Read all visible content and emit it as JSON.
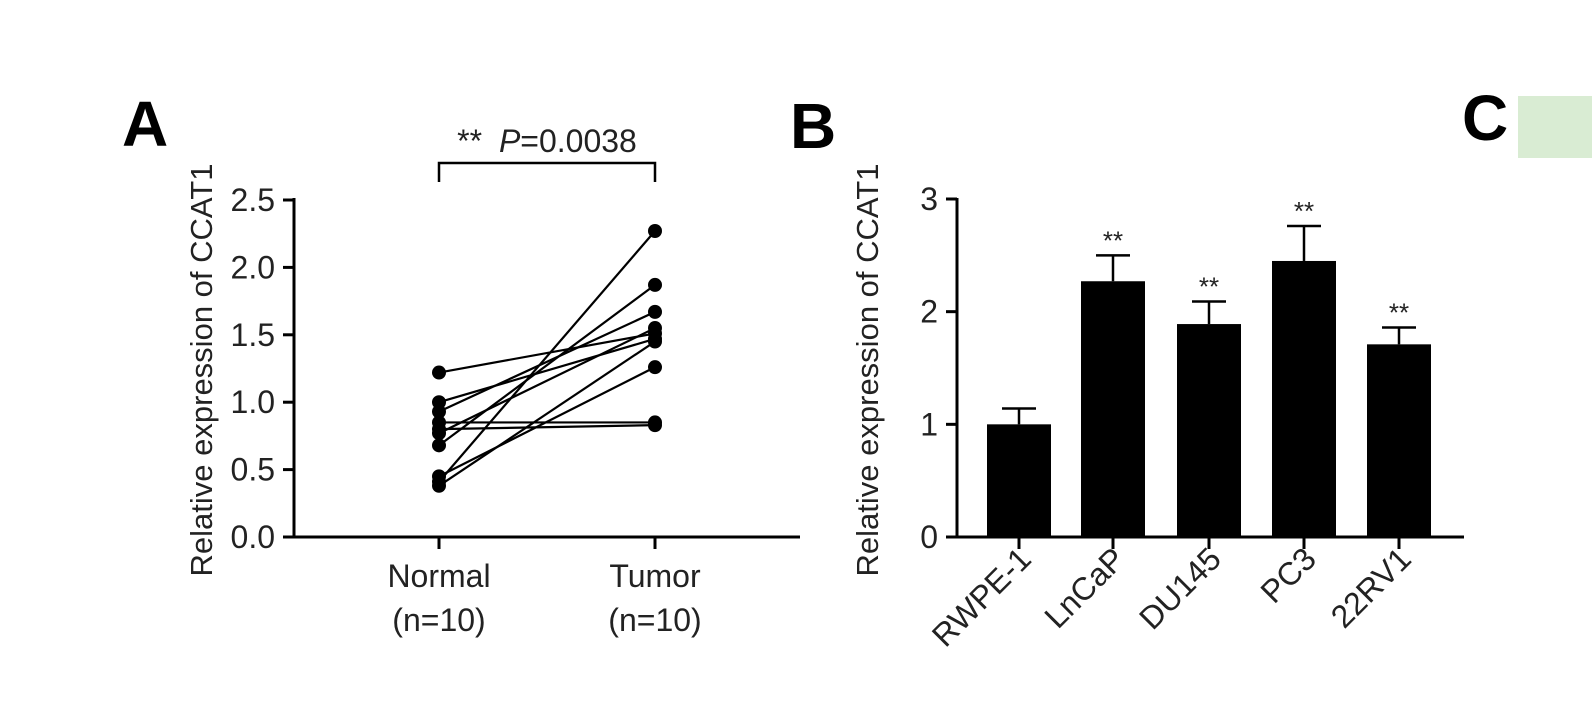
{
  "panels": {
    "a": {
      "letter": "A"
    },
    "b": {
      "letter": "B"
    },
    "c": {
      "letter": "C",
      "swatch_color": "#d9ecd3"
    }
  },
  "chart_data": [
    {
      "type": "scatter",
      "subtype": "paired",
      "panel": "A",
      "ylabel": "Relative expression of CCAT1",
      "ylim": [
        0,
        2.5
      ],
      "yticks": [
        "0.0",
        "0.5",
        "1.0",
        "1.5",
        "2.0",
        "2.5"
      ],
      "categories": [
        {
          "line1": "Normal",
          "line2": "(n=10)"
        },
        {
          "line1": "Tumor",
          "line2": "(n=10)"
        }
      ],
      "pairs": [
        [
          1.22,
          1.51
        ],
        [
          1.0,
          1.47
        ],
        [
          0.93,
          1.67
        ],
        [
          0.85,
          0.85
        ],
        [
          0.8,
          0.83
        ],
        [
          0.77,
          1.55
        ],
        [
          0.68,
          1.87
        ],
        [
          0.45,
          1.26
        ],
        [
          0.41,
          2.27
        ],
        [
          0.38,
          1.45
        ]
      ],
      "significance": {
        "stars": "**",
        "p_label": "P",
        "p_value": "=0.0038"
      },
      "color": "#000000"
    },
    {
      "type": "bar",
      "panel": "B",
      "ylabel": "Relative expression of CCAT1",
      "ylim": [
        0,
        3
      ],
      "yticks": [
        "0",
        "1",
        "2",
        "3"
      ],
      "categories": [
        "RWPE-1",
        "LnCaP",
        "DU145",
        "PC3",
        "22RV1"
      ],
      "values": [
        1.0,
        2.27,
        1.89,
        2.45,
        1.71
      ],
      "errors": [
        0.14,
        0.23,
        0.2,
        0.31,
        0.15
      ],
      "stars": [
        "",
        "**",
        "**",
        "**",
        "**"
      ],
      "color": "#000000"
    }
  ]
}
